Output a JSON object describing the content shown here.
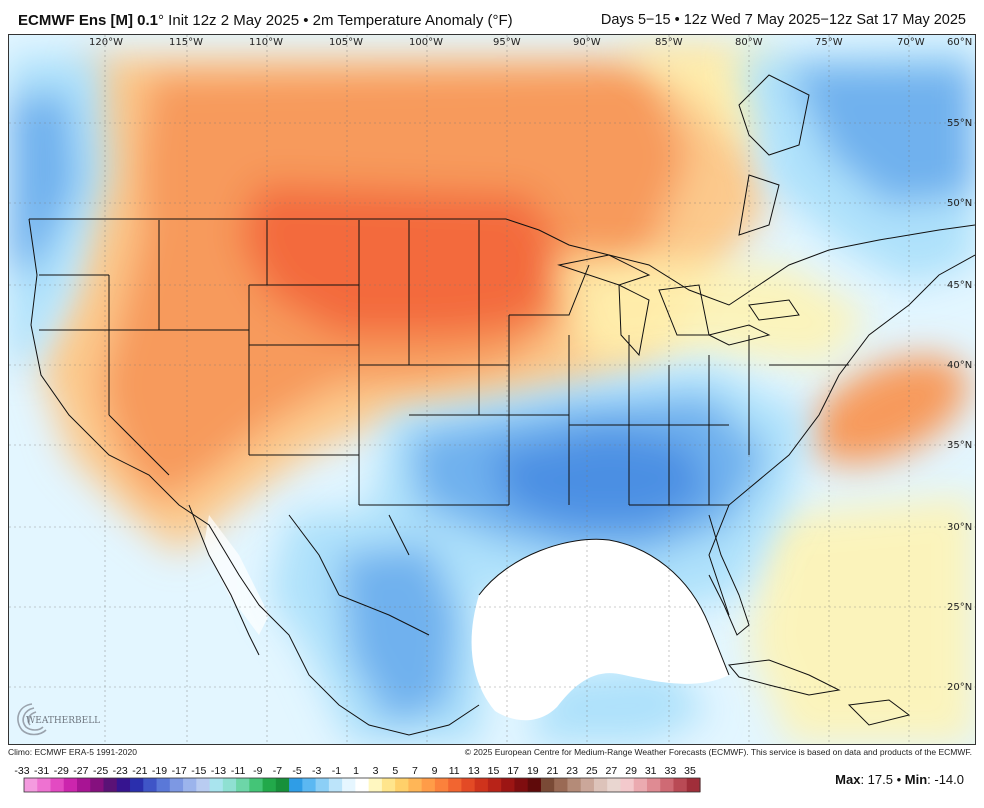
{
  "header": {
    "model": "ECMWF Ens [M] 0.1",
    "init": "° Init 12z 2 May 2025 • 2m Temperature Anomaly (°F)",
    "valid": "Days 5−15 • 12z Wed 7 May 2025−12z Sat 17 May 2025"
  },
  "map": {
    "lon_labels": [
      "120°W",
      "115°W",
      "110°W",
      "105°W",
      "100°W",
      "95°W",
      "90°W",
      "85°W",
      "80°W",
      "75°W",
      "70°W",
      "60°N"
    ],
    "lat_labels": [
      "55°N",
      "50°N",
      "45°N",
      "40°N",
      "35°N",
      "30°N",
      "25°N",
      "20°N"
    ],
    "colors": {
      "warm_strong": "#f36a3e",
      "warm": "#f79a5c",
      "warm_light": "#fcc98c",
      "neutral_warm": "#fff3b0",
      "neutral_cool": "#e3f6ff",
      "cool_light": "#aee1fb",
      "cool": "#6fb1ee",
      "cool_strong": "#4b8fe3",
      "water": "#ffffff",
      "borders": "#111111"
    }
  },
  "logo": {
    "text": "WEATHERBELL"
  },
  "footer": {
    "climo": "Climo: ECMWF ERA-5 1991-2020",
    "copyright": "© 2025 European Centre for Medium-Range Weather Forecasts (ECMWF). This service is based on data and products of the ECMWF."
  },
  "colorbar": {
    "ticks": [
      "-33",
      "-31",
      "-29",
      "-27",
      "-25",
      "-23",
      "-21",
      "-19",
      "-17",
      "-15",
      "-13",
      "-11",
      "-9",
      "-7",
      "-5",
      "-3",
      "-1",
      "1",
      "3",
      "5",
      "7",
      "9",
      "11",
      "13",
      "15",
      "17",
      "19",
      "21",
      "23",
      "25",
      "27",
      "29",
      "31",
      "33",
      "35"
    ],
    "colors": [
      "#f49bdf",
      "#ee72d1",
      "#e34ac2",
      "#cc25ad",
      "#a81494",
      "#85107e",
      "#5a1276",
      "#36148f",
      "#2a2fad",
      "#3f55c7",
      "#5a78d8",
      "#7d98e3",
      "#9cb4ec",
      "#b9ccf1",
      "#a9e4ee",
      "#8fe0d2",
      "#6dd6a8",
      "#44c577",
      "#22a94a",
      "#17903a",
      "#2f9de6",
      "#5bb8f2",
      "#8ccff6",
      "#bce4fa",
      "#e6f6ff",
      "#ffffff",
      "#fff7c0",
      "#ffe58c",
      "#ffd06a",
      "#ffb657",
      "#ff9c48",
      "#fb813c",
      "#f26530",
      "#e34a25",
      "#cf331c",
      "#b82318",
      "#9c1513",
      "#7f0d0f",
      "#5f0a0a",
      "#7a4a36",
      "#9a6a55",
      "#b48b78",
      "#cba79a",
      "#ddc3ba",
      "#e9d6d0",
      "#f3c9cc",
      "#ebaab0",
      "#df8b93",
      "#cf6a74",
      "#b94a55",
      "#a02e3a"
    ]
  },
  "stats": {
    "max_label": "Max",
    "max_value": ": 17.5 • ",
    "min_label": "Min",
    "min_value": ": -14.0"
  }
}
